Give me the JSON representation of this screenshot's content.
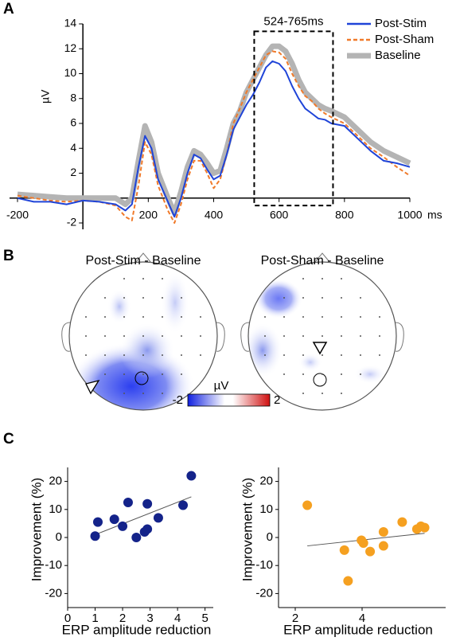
{
  "panels": [
    "A",
    "B",
    "C"
  ],
  "chart_data": [
    {
      "type": "line",
      "ylabel": "µV",
      "xlabel": "ms",
      "annotation": "524-765ms",
      "window": [
        524,
        765
      ],
      "xlim": [
        -200,
        1000
      ],
      "xticks": [
        -200,
        200,
        400,
        600,
        800,
        1000
      ],
      "ylim": [
        -2,
        14
      ],
      "yticks": [
        -2,
        2,
        4,
        6,
        8,
        10,
        12,
        14
      ],
      "x": [
        -200,
        -150,
        -100,
        -50,
        0,
        50,
        100,
        130,
        150,
        170,
        190,
        210,
        230,
        260,
        280,
        300,
        320,
        340,
        360,
        380,
        400,
        420,
        440,
        460,
        480,
        500,
        520,
        540,
        560,
        580,
        600,
        620,
        640,
        660,
        680,
        700,
        720,
        740,
        760,
        800,
        840,
        880,
        920,
        960,
        1000
      ],
      "series": [
        {
          "name": "Post-Stim",
          "color": "#1f44d8",
          "style": "solid",
          "values": [
            0,
            -0.3,
            -0.3,
            -0.5,
            -0.2,
            -0.3,
            -0.5,
            -1,
            -0.5,
            2.5,
            5,
            4,
            1.5,
            -0.3,
            -1.5,
            0,
            2,
            3.5,
            3.2,
            2.3,
            1.5,
            1.8,
            3.5,
            5.5,
            6.5,
            7.5,
            8.3,
            9.3,
            10.5,
            11,
            10.8,
            10.2,
            9,
            8,
            7.2,
            6.8,
            6.4,
            6.3,
            6,
            5.8,
            4.8,
            3.8,
            3,
            2.8,
            2.5
          ]
        },
        {
          "name": "Post-Sham",
          "color": "#f07a2a",
          "style": "dashed",
          "values": [
            0.2,
            0,
            -0.2,
            -0.3,
            -0.2,
            -0.3,
            -0.6,
            -1.5,
            -1.8,
            1,
            4.5,
            3.5,
            1,
            -1,
            -2,
            -0.5,
            1.5,
            3,
            3,
            2,
            0.8,
            1.5,
            3.5,
            6,
            7.2,
            8.5,
            9.5,
            10.5,
            11.5,
            11.8,
            11.7,
            11.2,
            10,
            9,
            8.2,
            7.8,
            7.2,
            6.8,
            6.5,
            6,
            5,
            4,
            3.3,
            2.5,
            1.8
          ]
        },
        {
          "name": "Baseline",
          "color": "#b4b4b4",
          "style": "thick",
          "values": [
            0.3,
            0.2,
            0.1,
            0,
            0,
            0,
            0,
            -0.5,
            0,
            3,
            5.8,
            4.5,
            2,
            0,
            -1.2,
            0.5,
            2.5,
            3.8,
            3.5,
            2.8,
            2,
            2.2,
            4,
            6,
            7,
            8.5,
            9.5,
            10.5,
            11.5,
            12.2,
            12.2,
            11.8,
            10.8,
            9.5,
            8.5,
            8,
            7.5,
            7.2,
            7,
            6.5,
            5.5,
            4.5,
            3.8,
            3.3,
            2.8
          ]
        }
      ]
    },
    {
      "type": "scatter",
      "xlabel": "ERP amplitude reduction",
      "ylabel": "Improvement (%)",
      "color": "#14238a",
      "xlim": [
        0,
        5.3
      ],
      "xticks": [
        0,
        1,
        2,
        3,
        4,
        5
      ],
      "ylim": [
        -25,
        25
      ],
      "yticks": [
        -20,
        -10,
        0,
        10,
        20
      ],
      "x": [
        1,
        1.1,
        1.7,
        2,
        2.2,
        2.5,
        2.8,
        2.9,
        2.9,
        3.3,
        4.2,
        4.5
      ],
      "values": [
        0.5,
        5.5,
        6.5,
        4,
        12.5,
        0,
        2,
        3,
        12,
        7,
        11.5,
        22
      ],
      "fit": {
        "x": [
          1,
          4.5
        ],
        "values": [
          1,
          14.5
        ]
      }
    },
    {
      "type": "scatter",
      "xlabel": "ERP amplitude reduction",
      "ylabel": "Improvement (%)",
      "color": "#f5a020",
      "xlim": [
        1.5,
        6.5
      ],
      "xticks": [
        2,
        4
      ],
      "ylim": [
        -25,
        25
      ],
      "yticks": [
        -20,
        -10,
        0,
        10,
        20
      ],
      "x": [
        2.36,
        3.47,
        3.58,
        3.98,
        4.04,
        4.24,
        4.64,
        4.64,
        5.2,
        5.64,
        5.76,
        5.87
      ],
      "values": [
        11.5,
        -4.5,
        -15.5,
        -1,
        -2,
        -5,
        2,
        -3,
        5.5,
        3,
        4,
        3.5
      ],
      "fit": {
        "x": [
          2.36,
          5.87
        ],
        "values": [
          -3,
          1.5
        ]
      }
    }
  ],
  "topomaps": {
    "titles": [
      "Post-Stim - Baseline",
      "Post-Sham - Baseline"
    ],
    "colorbar": {
      "label": "µV",
      "ticks": [
        -2,
        2
      ]
    }
  }
}
